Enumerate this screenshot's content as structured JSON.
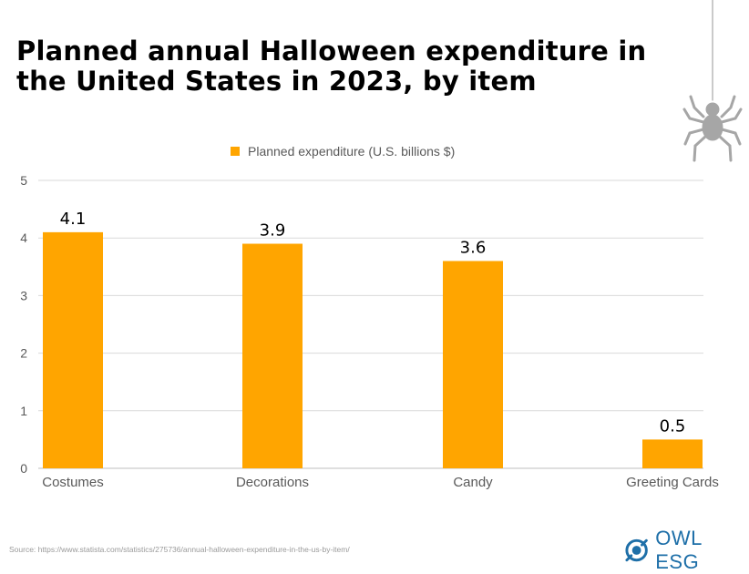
{
  "title": "Planned annual Halloween expenditure in the United States in 2023, by item",
  "source": "Source: https://www.statista.com/statistics/275736/annual-halloween-expenditure-in-the-us-by-item/",
  "logo": {
    "text": "OWL ESG",
    "icon": "owl-eye-icon"
  },
  "decoration": {
    "icon": "spider-icon"
  },
  "colors": {
    "bar": "#FFA500",
    "grid": "#d9d9d9",
    "axis_text": "#595959",
    "logo": "#1e6fa8"
  },
  "chart_data": {
    "type": "bar",
    "categories": [
      "Costumes",
      "Decorations",
      "Candy",
      "Greeting Cards"
    ],
    "series": [
      {
        "name": "Planned expenditure (U.S. billions $)",
        "values": [
          4.1,
          3.9,
          3.6,
          0.5
        ]
      }
    ],
    "data_labels": [
      "4.1",
      "3.9",
      "3.6",
      "0.5"
    ],
    "ylim": [
      0,
      5
    ],
    "yticks": [
      0,
      1,
      2,
      3,
      4,
      5
    ],
    "grid": true,
    "legend": "top"
  }
}
